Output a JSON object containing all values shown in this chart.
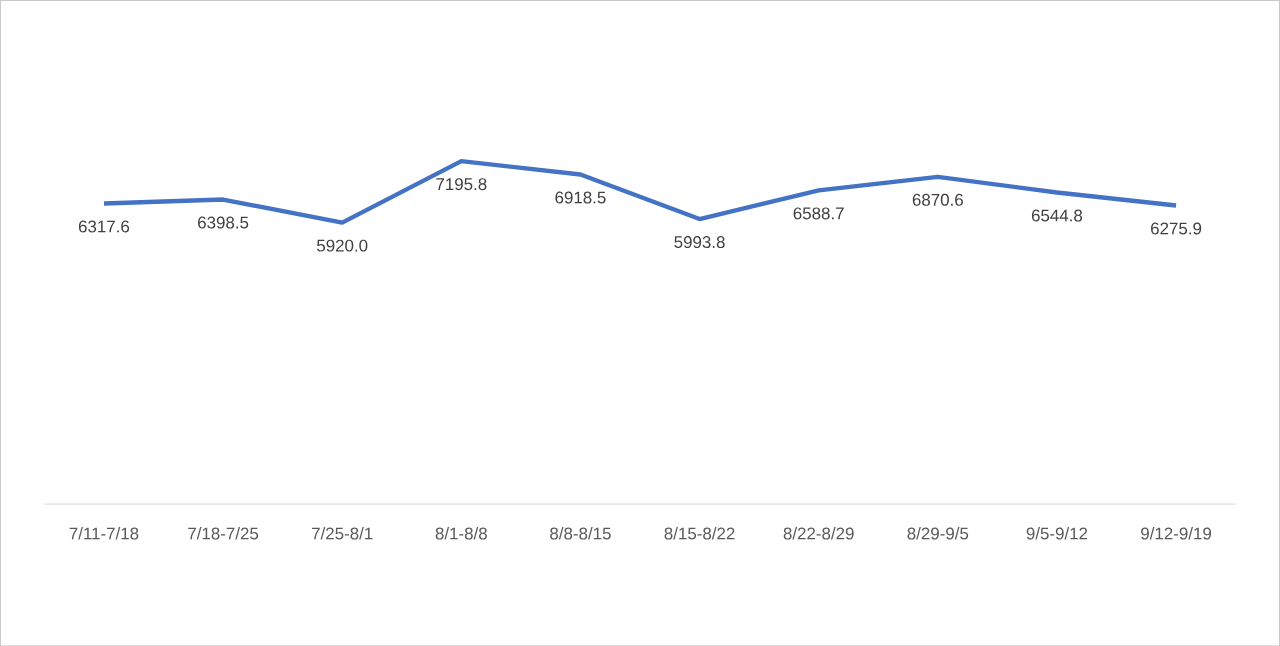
{
  "chart_data": {
    "type": "line",
    "categories": [
      "7/11-7/18",
      "7/18-7/25",
      "7/25-8/1",
      "8/1-8/8",
      "8/8-8/15",
      "8/15-8/22",
      "8/22-8/29",
      "8/29-9/5",
      "9/5-9/12",
      "9/12-9/19"
    ],
    "series": [
      {
        "color": "#4472c4",
        "values": [
          6317.6,
          6398.5,
          5920.0,
          7195.8,
          6918.5,
          5993.8,
          6588.7,
          6870.6,
          6544.8,
          6275.9
        ],
        "value_labels": [
          "6317.6",
          "6398.5",
          "5920.0",
          "7195.8",
          "6918.5",
          "5993.8",
          "6588.7",
          "6870.6",
          "6544.8",
          "6275.9"
        ]
      }
    ],
    "grid": false,
    "marker": "none",
    "line_style": "solid",
    "tick_labels": "x"
  }
}
